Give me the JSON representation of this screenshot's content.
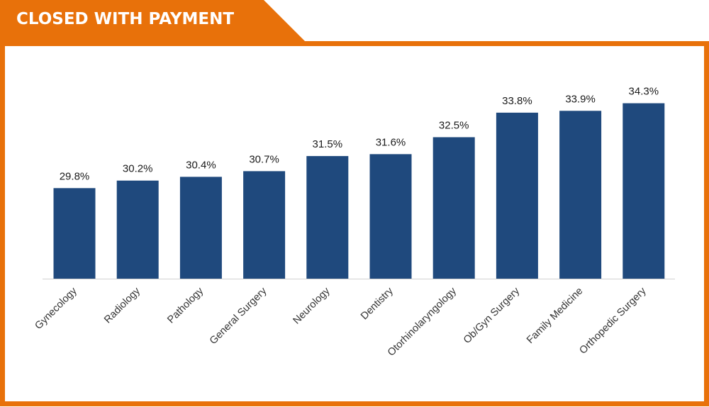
{
  "header": {
    "title": "CLOSED WITH PAYMENT",
    "accent_color": "#E8710A"
  },
  "chart_data": {
    "type": "bar",
    "title": "",
    "xlabel": "",
    "ylabel": "",
    "categories": [
      "Gynecology",
      "Radiology",
      "Pathology",
      "General Surgery",
      "Neurology",
      "Dentistry",
      "Otorhinolaryngology",
      "Ob/Gyn Surgery",
      "Family Medicine",
      "Orthopedic Surgery"
    ],
    "values": [
      29.8,
      30.2,
      30.4,
      30.7,
      31.5,
      31.6,
      32.5,
      33.8,
      33.9,
      34.3
    ],
    "value_labels": [
      "29.8%",
      "30.2%",
      "30.4%",
      "30.7%",
      "31.5%",
      "31.6%",
      "32.5%",
      "33.8%",
      "33.9%",
      "34.3%"
    ],
    "ylim": [
      25.0,
      35.0
    ],
    "grid": false,
    "bar_color": "#1F497D"
  }
}
